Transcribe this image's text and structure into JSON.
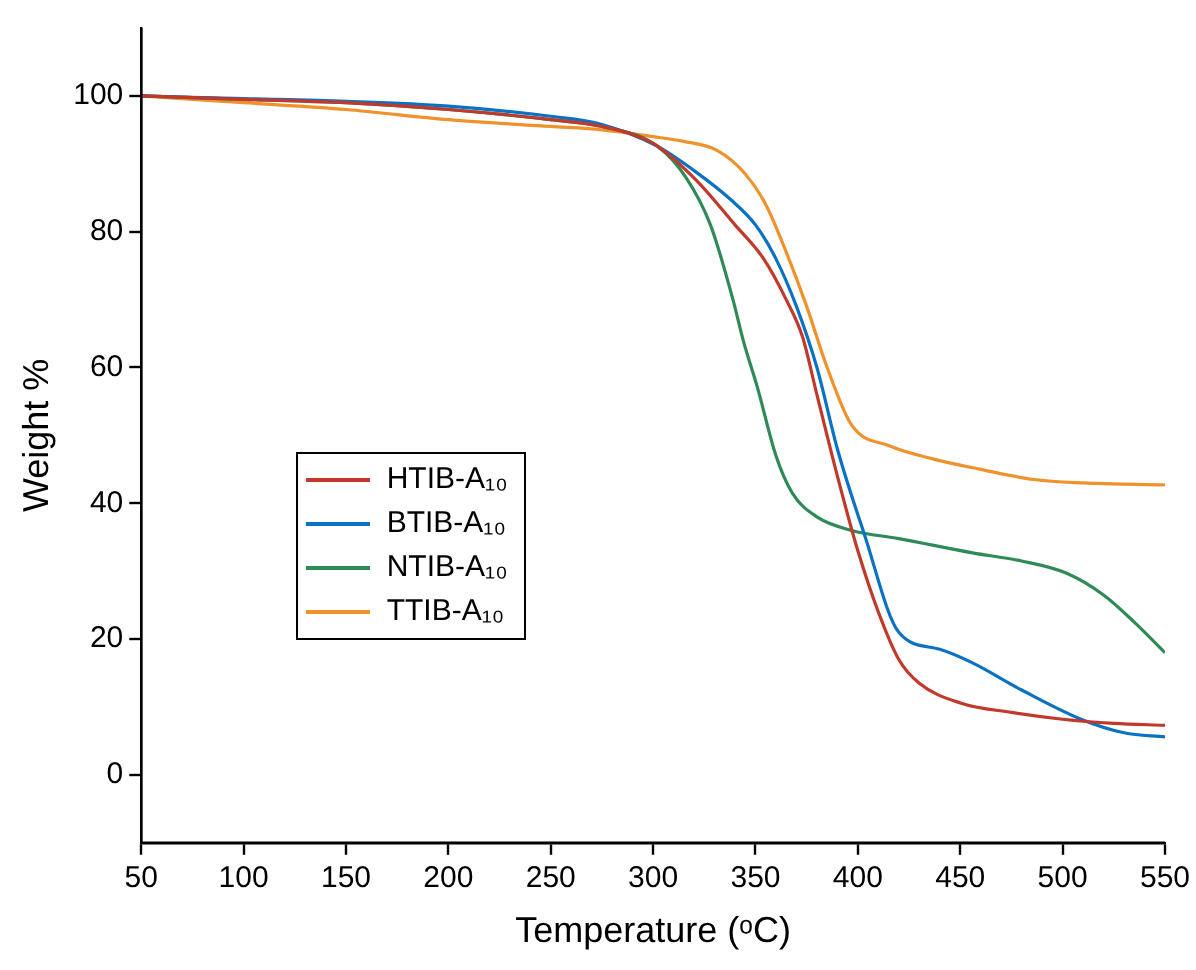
{
  "chart_data": {
    "type": "line",
    "xlabel": "Temperature (ᵒC)",
    "ylabel": "Weight %",
    "xlim": [
      50,
      550
    ],
    "xticks": [
      50,
      100,
      150,
      200,
      250,
      300,
      350,
      400,
      450,
      500,
      550
    ],
    "ylim": [
      -10,
      110
    ],
    "yticks": [
      0,
      20,
      40,
      60,
      80,
      100
    ],
    "grid": false,
    "legend": "left",
    "marker": "none",
    "line_style": "solid",
    "series": [
      {
        "name": "HTIB-A₁₀",
        "color": "#c0392b",
        "x": [
          50,
          100,
          150,
          200,
          250,
          275,
          300,
          321,
          340,
          354,
          365,
          373,
          380,
          390,
          400,
          410,
          420,
          430,
          450,
          475,
          500,
          525,
          550
        ],
        "values": [
          100,
          99.5,
          99,
          98,
          96.5,
          95.5,
          93,
          87.6,
          81,
          76,
          70,
          64.5,
          56,
          44,
          33,
          24,
          17,
          13.5,
          10.6,
          9.2,
          8.2,
          7.6,
          7.3
        ]
      },
      {
        "name": "BTIB-A₁₀",
        "color": "#0a72c4",
        "x": [
          50,
          100,
          150,
          200,
          250,
          275,
          302,
          320,
          338,
          350,
          360,
          370,
          380,
          390,
          403,
          420,
          440,
          456,
          480,
          509,
          530,
          550
        ],
        "values": [
          100,
          99.6,
          99.2,
          98.5,
          97,
          95.8,
          92.6,
          89,
          84.7,
          81,
          76,
          69,
          60,
          48,
          35.6,
          21,
          18.5,
          16.5,
          12.5,
          8.2,
          6.2,
          5.6
        ]
      },
      {
        "name": "NTIB-A₁₀",
        "color": "#2e8b57",
        "x": [
          50,
          100,
          150,
          200,
          250,
          275,
          302,
          316,
          328,
          339,
          344,
          351,
          360,
          368,
          380,
          397,
          420,
          456,
          480,
          502,
          520,
          535,
          550
        ],
        "values": [
          100,
          99.5,
          99,
          98,
          96.5,
          95.5,
          92.6,
          88,
          81,
          70,
          64,
          57,
          47,
          41.5,
          38,
          36,
          34.8,
          32.7,
          31.5,
          29.7,
          26.5,
          22.5,
          18
        ]
      },
      {
        "name": "TTIB-A₁₀",
        "color": "#f0922b",
        "x": [
          50,
          100,
          150,
          200,
          250,
          275,
          300,
          315,
          331,
          345,
          355,
          365,
          375,
          385,
          397,
          415,
          437,
          460,
          486,
          510,
          550
        ],
        "values": [
          100,
          99,
          98,
          96.5,
          95.5,
          95,
          94,
          93.3,
          92,
          88.5,
          84,
          77,
          69,
          60,
          51.5,
          48.5,
          46.5,
          45,
          43.5,
          43,
          42.7
        ]
      }
    ]
  }
}
